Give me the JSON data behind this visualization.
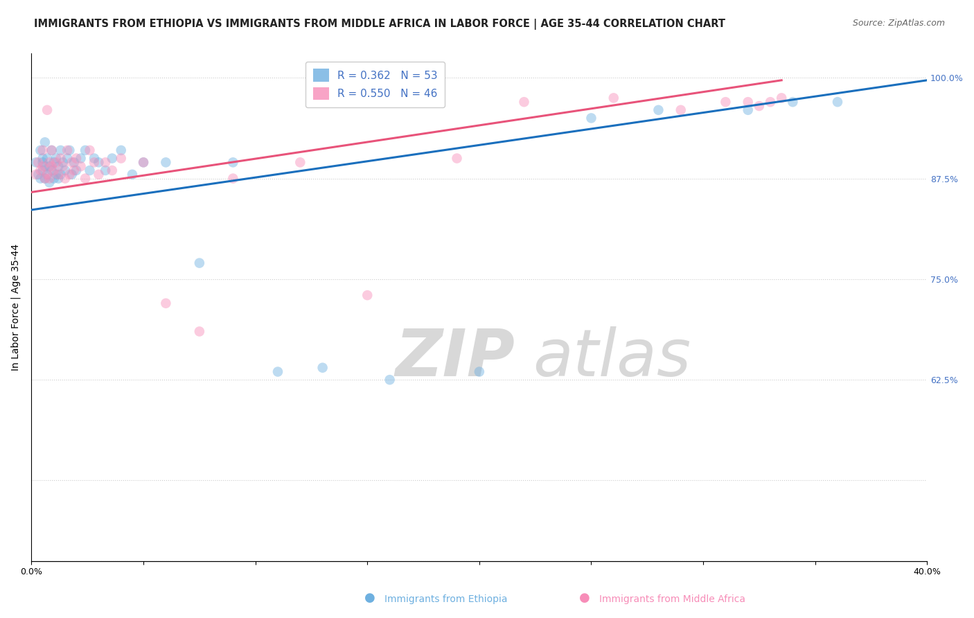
{
  "title": "IMMIGRANTS FROM ETHIOPIA VS IMMIGRANTS FROM MIDDLE AFRICA IN LABOR FORCE | AGE 35-44 CORRELATION CHART",
  "source": "Source: ZipAtlas.com",
  "ylabel": "In Labor Force | Age 35-44",
  "xlim": [
    0.0,
    0.4
  ],
  "ylim": [
    0.4,
    1.03
  ],
  "xticks": [
    0.0,
    0.05,
    0.1,
    0.15,
    0.2,
    0.25,
    0.3,
    0.35,
    0.4
  ],
  "xticklabels": [
    "0.0%",
    "",
    "",
    "",
    "",
    "",
    "",
    "",
    "40.0%"
  ],
  "yticks": [
    0.4,
    0.5,
    0.625,
    0.75,
    0.875,
    1.0
  ],
  "yticklabels": [
    "",
    "",
    "62.5%",
    "75.0%",
    "87.5%",
    "100.0%"
  ],
  "legend_items": [
    {
      "color": "#6eb0e0",
      "R": "0.362",
      "N": "53"
    },
    {
      "color": "#f78db8",
      "R": "0.550",
      "N": "46"
    }
  ],
  "blue_scatter_x": [
    0.002,
    0.003,
    0.004,
    0.004,
    0.005,
    0.005,
    0.005,
    0.006,
    0.006,
    0.006,
    0.007,
    0.007,
    0.008,
    0.008,
    0.009,
    0.009,
    0.01,
    0.01,
    0.011,
    0.011,
    0.012,
    0.012,
    0.013,
    0.013,
    0.014,
    0.015,
    0.016,
    0.017,
    0.018,
    0.019,
    0.02,
    0.022,
    0.024,
    0.026,
    0.028,
    0.03,
    0.033,
    0.036,
    0.04,
    0.045,
    0.05,
    0.06,
    0.075,
    0.09,
    0.11,
    0.13,
    0.16,
    0.2,
    0.25,
    0.28,
    0.32,
    0.34,
    0.36
  ],
  "blue_scatter_y": [
    0.895,
    0.88,
    0.91,
    0.875,
    0.895,
    0.885,
    0.9,
    0.89,
    0.875,
    0.92,
    0.88,
    0.9,
    0.89,
    0.87,
    0.885,
    0.91,
    0.875,
    0.895,
    0.88,
    0.9,
    0.89,
    0.875,
    0.91,
    0.88,
    0.895,
    0.885,
    0.9,
    0.91,
    0.88,
    0.895,
    0.885,
    0.9,
    0.91,
    0.885,
    0.9,
    0.895,
    0.885,
    0.9,
    0.91,
    0.88,
    0.895,
    0.895,
    0.77,
    0.895,
    0.635,
    0.64,
    0.625,
    0.635,
    0.95,
    0.96,
    0.96,
    0.97,
    0.97
  ],
  "pink_scatter_x": [
    0.002,
    0.003,
    0.004,
    0.005,
    0.005,
    0.006,
    0.007,
    0.007,
    0.008,
    0.008,
    0.009,
    0.009,
    0.01,
    0.011,
    0.012,
    0.013,
    0.014,
    0.015,
    0.016,
    0.017,
    0.018,
    0.019,
    0.02,
    0.022,
    0.024,
    0.026,
    0.028,
    0.03,
    0.033,
    0.036,
    0.04,
    0.05,
    0.06,
    0.075,
    0.09,
    0.12,
    0.15,
    0.19,
    0.22,
    0.26,
    0.29,
    0.31,
    0.32,
    0.325,
    0.33,
    0.335
  ],
  "pink_scatter_y": [
    0.88,
    0.895,
    0.885,
    0.91,
    0.89,
    0.875,
    0.96,
    0.88,
    0.895,
    0.875,
    0.89,
    0.91,
    0.885,
    0.895,
    0.88,
    0.9,
    0.89,
    0.875,
    0.91,
    0.88,
    0.895,
    0.885,
    0.9,
    0.89,
    0.875,
    0.91,
    0.895,
    0.88,
    0.895,
    0.885,
    0.9,
    0.895,
    0.72,
    0.685,
    0.875,
    0.895,
    0.73,
    0.9,
    0.97,
    0.975,
    0.96,
    0.97,
    0.97,
    0.965,
    0.97,
    0.975
  ],
  "blue_line_x": [
    0.0,
    0.4
  ],
  "blue_line_y": [
    0.836,
    0.997
  ],
  "pink_line_x": [
    0.0,
    0.335
  ],
  "pink_line_y": [
    0.858,
    0.997
  ],
  "scatter_size": 110,
  "scatter_alpha": 0.45,
  "blue_color": "#6eb0e0",
  "pink_color": "#f78db8",
  "blue_line_color": "#1a6fbd",
  "pink_line_color": "#e8537a",
  "background_color": "#ffffff",
  "watermark_zip": "ZIP",
  "watermark_atlas": "atlas",
  "watermark_color": "#d8d8d8",
  "title_fontsize": 10.5,
  "source_fontsize": 9,
  "axis_label_fontsize": 10,
  "tick_fontsize": 9,
  "legend_fontsize": 11,
  "right_ytick_color": "#4472c4",
  "legend_r_color": "#4472c4",
  "legend_n_color": "#4472c4"
}
